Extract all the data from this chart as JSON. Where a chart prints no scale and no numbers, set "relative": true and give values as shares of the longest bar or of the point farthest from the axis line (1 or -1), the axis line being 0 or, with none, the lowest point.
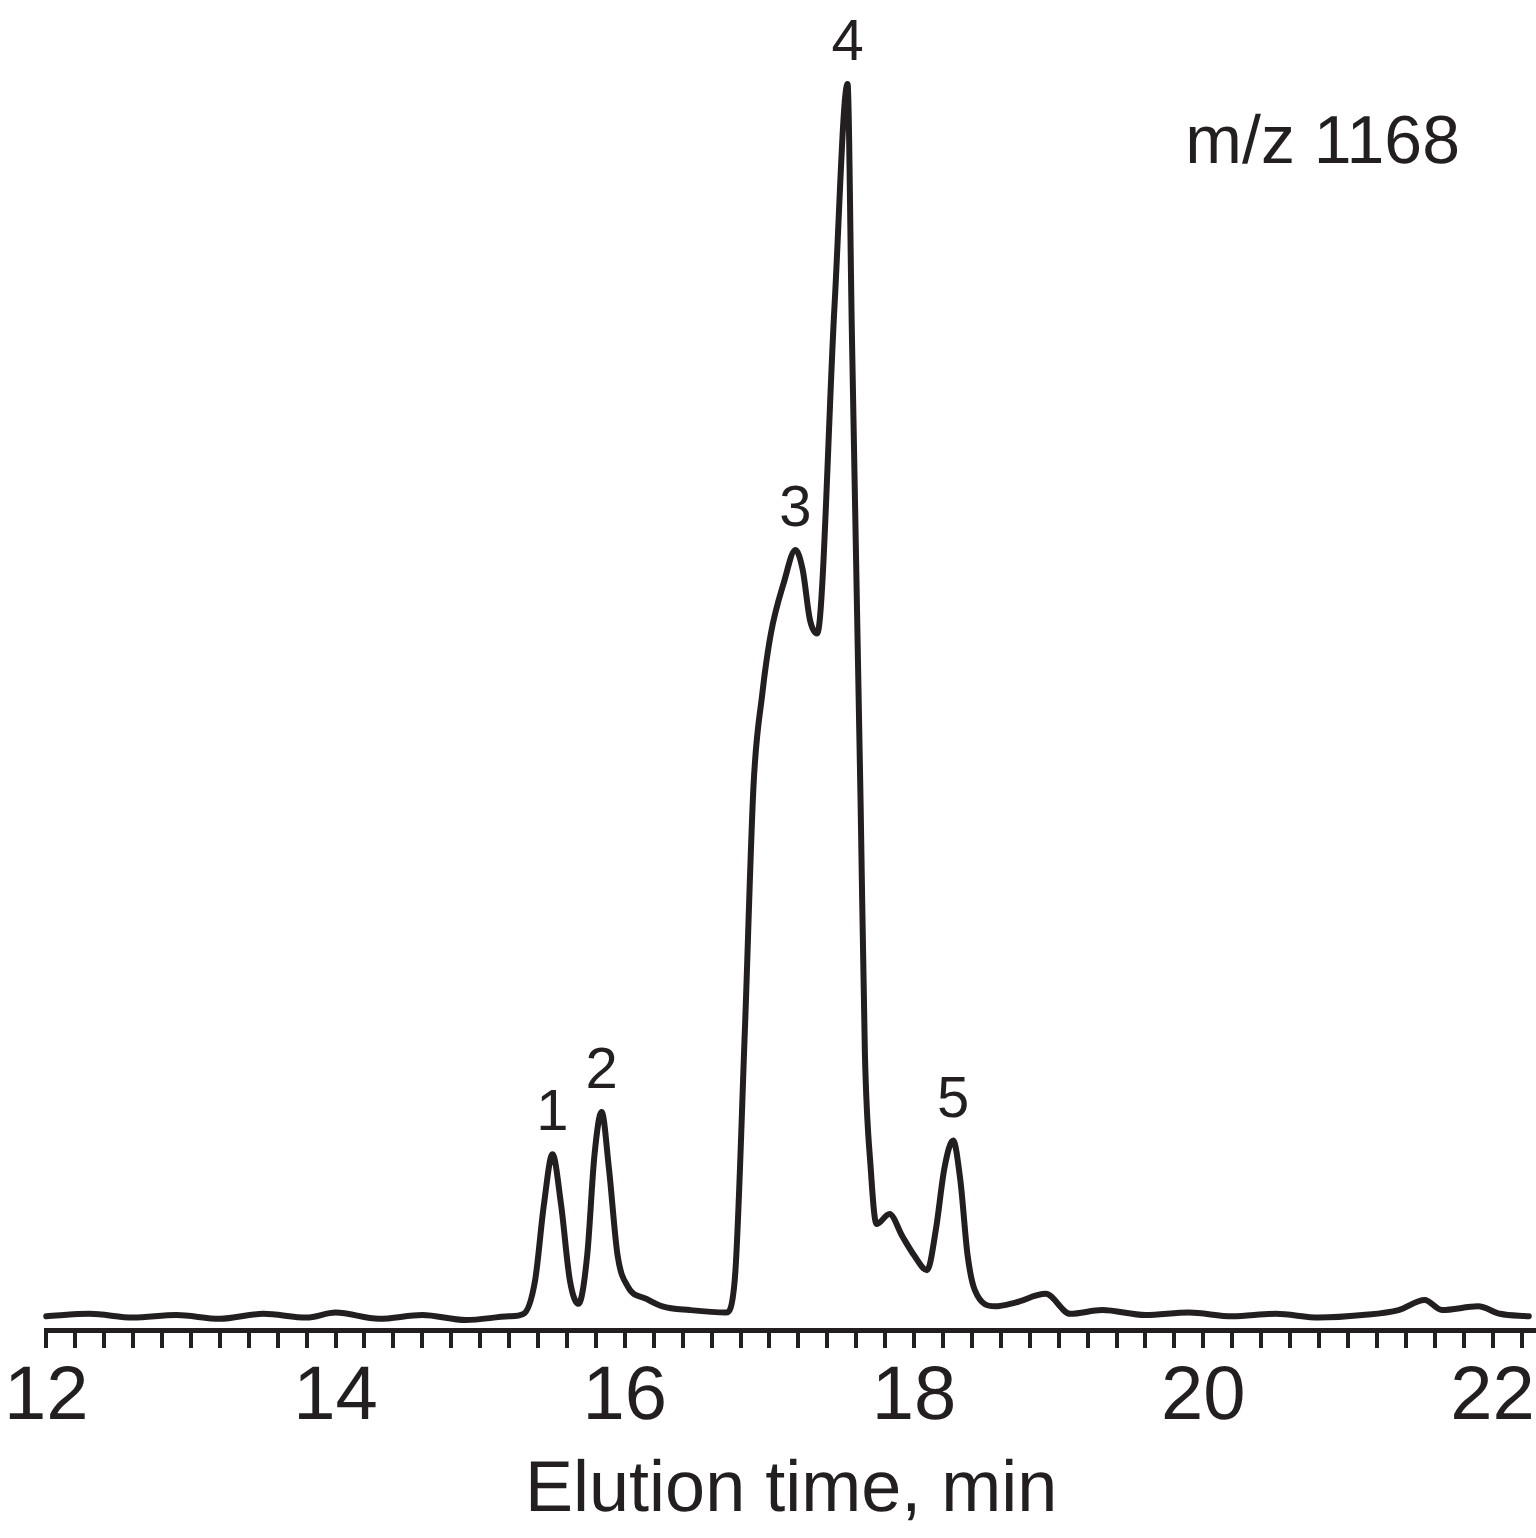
{
  "chart_data": {
    "type": "line",
    "relative": true,
    "xlabel": "Elution time, min",
    "color": "#231f20",
    "marker": "none",
    "line_style": "solid",
    "grid": false,
    "x": [
      12.0,
      12.3,
      12.6,
      12.9,
      13.2,
      13.5,
      13.8,
      14.0,
      14.3,
      14.6,
      14.9,
      15.2,
      15.3,
      15.38,
      15.44,
      15.5,
      15.56,
      15.62,
      15.68,
      15.74,
      15.79,
      15.84,
      15.89,
      15.95,
      16.02,
      16.15,
      16.26,
      16.45,
      16.7,
      16.76,
      16.83,
      16.89,
      16.95,
      17.01,
      17.1,
      17.18,
      17.23,
      17.28,
      17.33,
      17.45,
      17.54,
      17.57,
      17.63,
      17.66,
      17.7,
      17.74,
      17.83,
      17.92,
      18.0,
      18.09,
      18.15,
      18.21,
      18.27,
      18.32,
      18.37,
      18.42,
      18.56,
      18.7,
      18.91,
      19.08,
      19.3,
      19.6,
      19.9,
      20.2,
      20.5,
      20.8,
      21.1,
      21.35,
      21.53,
      21.65,
      21.9,
      22.05,
      22.25
    ],
    "values": [
      0.011,
      0.013,
      0.01,
      0.012,
      0.009,
      0.013,
      0.01,
      0.014,
      0.009,
      0.012,
      0.008,
      0.011,
      0.013,
      0.04,
      0.1,
      0.141,
      0.1,
      0.04,
      0.021,
      0.06,
      0.14,
      0.175,
      0.13,
      0.06,
      0.035,
      0.025,
      0.019,
      0.016,
      0.014,
      0.04,
      0.24,
      0.437,
      0.51,
      0.559,
      0.6,
      0.626,
      0.61,
      0.57,
      0.559,
      0.822,
      1.0,
      0.8,
      0.425,
      0.222,
      0.13,
      0.085,
      0.093,
      0.075,
      0.06,
      0.048,
      0.08,
      0.13,
      0.152,
      0.12,
      0.06,
      0.032,
      0.019,
      0.022,
      0.029,
      0.013,
      0.016,
      0.012,
      0.014,
      0.011,
      0.013,
      0.01,
      0.012,
      0.016,
      0.024,
      0.016,
      0.019,
      0.013,
      0.011
    ],
    "xlim": [
      12,
      22.3
    ],
    "xticks": [
      12,
      {
        "value": 12.2,
        "label": null
      },
      {
        "value": 12.4,
        "label": null
      },
      {
        "value": 12.6,
        "label": null
      },
      {
        "value": 12.8,
        "label": null
      },
      {
        "value": 13,
        "label": null
      },
      {
        "value": 13.2,
        "label": null
      },
      {
        "value": 13.4,
        "label": null
      },
      {
        "value": 13.6,
        "label": null
      },
      {
        "value": 13.8,
        "label": null
      },
      14,
      {
        "value": 14.2,
        "label": null
      },
      {
        "value": 14.4,
        "label": null
      },
      {
        "value": 14.6,
        "label": null
      },
      {
        "value": 14.8,
        "label": null
      },
      {
        "value": 15,
        "label": null
      },
      {
        "value": 15.2,
        "label": null
      },
      {
        "value": 15.4,
        "label": null
      },
      {
        "value": 15.6,
        "label": null
      },
      {
        "value": 15.8,
        "label": null
      },
      16,
      {
        "value": 16.2,
        "label": null
      },
      {
        "value": 16.4,
        "label": null
      },
      {
        "value": 16.6,
        "label": null
      },
      {
        "value": 16.8,
        "label": null
      },
      {
        "value": 17,
        "label": null
      },
      {
        "value": 17.2,
        "label": null
      },
      {
        "value": 17.4,
        "label": null
      },
      {
        "value": 17.6,
        "label": null
      },
      {
        "value": 17.8,
        "label": null
      },
      18,
      {
        "value": 18.2,
        "label": null
      },
      {
        "value": 18.4,
        "label": null
      },
      {
        "value": 18.6,
        "label": null
      },
      {
        "value": 18.8,
        "label": null
      },
      {
        "value": 19,
        "label": null
      },
      {
        "value": 19.2,
        "label": null
      },
      {
        "value": 19.4,
        "label": null
      },
      {
        "value": 19.6,
        "label": null
      },
      {
        "value": 19.8,
        "label": null
      },
      20,
      {
        "value": 20.2,
        "label": null
      },
      {
        "value": 20.4,
        "label": null
      },
      {
        "value": 20.6,
        "label": null
      },
      {
        "value": 20.8,
        "label": null
      },
      {
        "value": 21,
        "label": null
      },
      {
        "value": 21.2,
        "label": null
      },
      {
        "value": 21.4,
        "label": null
      },
      {
        "value": 21.6,
        "label": null
      },
      {
        "value": 21.8,
        "label": null
      },
      22,
      {
        "value": 22.2,
        "label": null
      }
    ],
    "annotations": [
      "m/z 1168",
      {
        "text": "1",
        "x": 15.5,
        "y": 0.141
      },
      {
        "text": "2",
        "x": 15.84,
        "y": 0.175
      },
      {
        "text": "3",
        "x": 17.18,
        "y": 0.626
      },
      {
        "text": "4",
        "x": 17.54,
        "y": 1.0
      },
      {
        "text": "5",
        "x": 18.27,
        "y": 0.152
      }
    ]
  }
}
